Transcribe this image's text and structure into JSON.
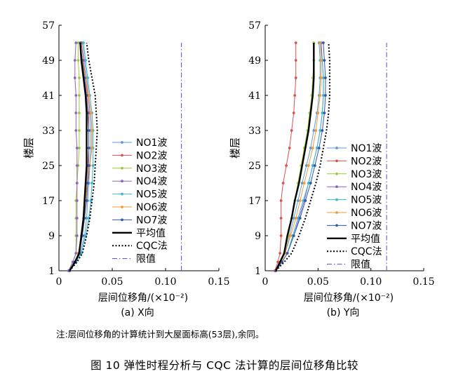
{
  "figure_caption": "图 10   弹性时程分析与 CQC 法计算的层间位移角比较",
  "note": "注:层间位移角的计算统计到大屋面标高(53层),余同。",
  "series_colors": {
    "NO1波": "#5b9bd5",
    "NO2波": "#d9534f",
    "NO3波": "#9acd32",
    "NO4波": "#8e63c4",
    "NO5波": "#3bb6d6",
    "NO6波": "#f29a38",
    "NO7波": "#2e5aa8",
    "平均值": "#000000",
    "CQC法": "#000000",
    "限值": "#6a5acd"
  },
  "chart_data": [
    {
      "type": "line",
      "subtitle": "(a) X向",
      "xlabel": "层间位移角/(×10⁻²)",
      "ylabel": "楼层",
      "xlim": [
        0,
        0.15
      ],
      "ylim": [
        1,
        57
      ],
      "xticks": [
        "0",
        "0.05",
        "0.10",
        "0.15"
      ],
      "yticks": [
        "1",
        "9",
        "17",
        "25",
        "33",
        "41",
        "49",
        "57"
      ],
      "legend_position": "right",
      "y": [
        1,
        3,
        5,
        9,
        13,
        17,
        21,
        25,
        29,
        33,
        37,
        41,
        45,
        49,
        53
      ],
      "series": [
        {
          "name": "NO1波",
          "values": [
            0.01,
            0.016,
            0.02,
            0.024,
            0.026,
            0.027,
            0.028,
            0.029,
            0.03,
            0.03,
            0.029,
            0.028,
            0.026,
            0.024,
            0.022
          ]
        },
        {
          "name": "NO2波",
          "values": [
            0.01,
            0.015,
            0.019,
            0.022,
            0.024,
            0.025,
            0.026,
            0.027,
            0.028,
            0.028,
            0.028,
            0.027,
            0.025,
            0.023,
            0.021
          ]
        },
        {
          "name": "NO3波",
          "values": [
            0.009,
            0.013,
            0.016,
            0.016,
            0.016,
            0.016,
            0.017,
            0.018,
            0.019,
            0.019,
            0.019,
            0.019,
            0.019,
            0.018,
            0.018
          ]
        },
        {
          "name": "NO4波",
          "values": [
            0.009,
            0.013,
            0.016,
            0.017,
            0.017,
            0.017,
            0.017,
            0.017,
            0.017,
            0.016,
            0.016,
            0.016,
            0.015,
            0.015,
            0.016
          ]
        },
        {
          "name": "NO5波",
          "values": [
            0.01,
            0.016,
            0.021,
            0.025,
            0.028,
            0.03,
            0.031,
            0.032,
            0.032,
            0.032,
            0.031,
            0.029,
            0.027,
            0.025,
            0.023
          ]
        },
        {
          "name": "NO6波",
          "values": [
            0.01,
            0.015,
            0.018,
            0.021,
            0.023,
            0.025,
            0.027,
            0.029,
            0.031,
            0.031,
            0.03,
            0.028,
            0.025,
            0.022,
            0.02
          ]
        },
        {
          "name": "NO7波",
          "values": [
            0.01,
            0.015,
            0.019,
            0.022,
            0.024,
            0.026,
            0.027,
            0.028,
            0.028,
            0.028,
            0.027,
            0.026,
            0.024,
            0.022,
            0.02
          ]
        },
        {
          "name": "平均值",
          "values": [
            0.01,
            0.015,
            0.019,
            0.021,
            0.023,
            0.024,
            0.025,
            0.026,
            0.026,
            0.026,
            0.026,
            0.025,
            0.023,
            0.021,
            0.02
          ]
        },
        {
          "name": "CQC法",
          "values": [
            0.01,
            0.017,
            0.022,
            0.026,
            0.029,
            0.031,
            0.033,
            0.034,
            0.035,
            0.036,
            0.035,
            0.034,
            0.031,
            0.028,
            0.026
          ]
        },
        {
          "name": "限值",
          "values": [
            0.1149,
            0.1149
          ]
        }
      ]
    },
    {
      "type": "line",
      "subtitle": "(b) Y向",
      "xlabel": "层间位移角/(×10⁻²)",
      "ylabel": "楼层",
      "xlim": [
        0,
        0.15
      ],
      "ylim": [
        1,
        57
      ],
      "xticks": [
        "0",
        "0.05",
        "0.10",
        "0.15"
      ],
      "yticks": [
        "1",
        "9",
        "17",
        "25",
        "33",
        "41",
        "49",
        "57"
      ],
      "legend_position": "right",
      "y": [
        1,
        3,
        5,
        9,
        13,
        17,
        21,
        25,
        29,
        33,
        37,
        41,
        45,
        49,
        53
      ],
      "series": [
        {
          "name": "NO1波",
          "values": [
            0.01,
            0.015,
            0.019,
            0.023,
            0.027,
            0.031,
            0.035,
            0.039,
            0.043,
            0.046,
            0.049,
            0.051,
            0.052,
            0.052,
            0.051
          ]
        },
        {
          "name": "NO2波",
          "values": [
            0.009,
            0.012,
            0.014,
            0.015,
            0.015,
            0.015,
            0.017,
            0.02,
            0.023,
            0.025,
            0.027,
            0.028,
            0.029,
            0.029,
            0.029
          ]
        },
        {
          "name": "NO3波",
          "values": [
            0.01,
            0.014,
            0.018,
            0.022,
            0.025,
            0.028,
            0.031,
            0.034,
            0.037,
            0.04,
            0.042,
            0.044,
            0.045,
            0.046,
            0.046
          ]
        },
        {
          "name": "NO4波",
          "values": [
            0.01,
            0.016,
            0.021,
            0.027,
            0.032,
            0.037,
            0.041,
            0.045,
            0.049,
            0.052,
            0.054,
            0.055,
            0.055,
            0.054,
            0.053
          ]
        },
        {
          "name": "NO5波",
          "values": [
            0.01,
            0.016,
            0.021,
            0.026,
            0.031,
            0.036,
            0.041,
            0.045,
            0.049,
            0.052,
            0.054,
            0.055,
            0.055,
            0.054,
            0.052
          ]
        },
        {
          "name": "NO6波",
          "values": [
            0.01,
            0.015,
            0.019,
            0.024,
            0.029,
            0.033,
            0.037,
            0.041,
            0.045,
            0.048,
            0.05,
            0.052,
            0.053,
            0.053,
            0.052
          ]
        },
        {
          "name": "NO7波",
          "values": [
            0.01,
            0.016,
            0.021,
            0.027,
            0.033,
            0.038,
            0.043,
            0.047,
            0.051,
            0.054,
            0.056,
            0.057,
            0.057,
            0.056,
            0.055
          ]
        },
        {
          "name": "平均值",
          "values": [
            0.01,
            0.014,
            0.018,
            0.021,
            0.025,
            0.028,
            0.032,
            0.035,
            0.038,
            0.041,
            0.043,
            0.045,
            0.046,
            0.046,
            0.046
          ]
        },
        {
          "name": "CQC法",
          "values": [
            0.01,
            0.018,
            0.025,
            0.032,
            0.038,
            0.043,
            0.048,
            0.052,
            0.055,
            0.058,
            0.06,
            0.061,
            0.061,
            0.061,
            0.06
          ]
        },
        {
          "name": "限值",
          "values": [
            0.1149,
            0.1149
          ]
        }
      ]
    }
  ]
}
